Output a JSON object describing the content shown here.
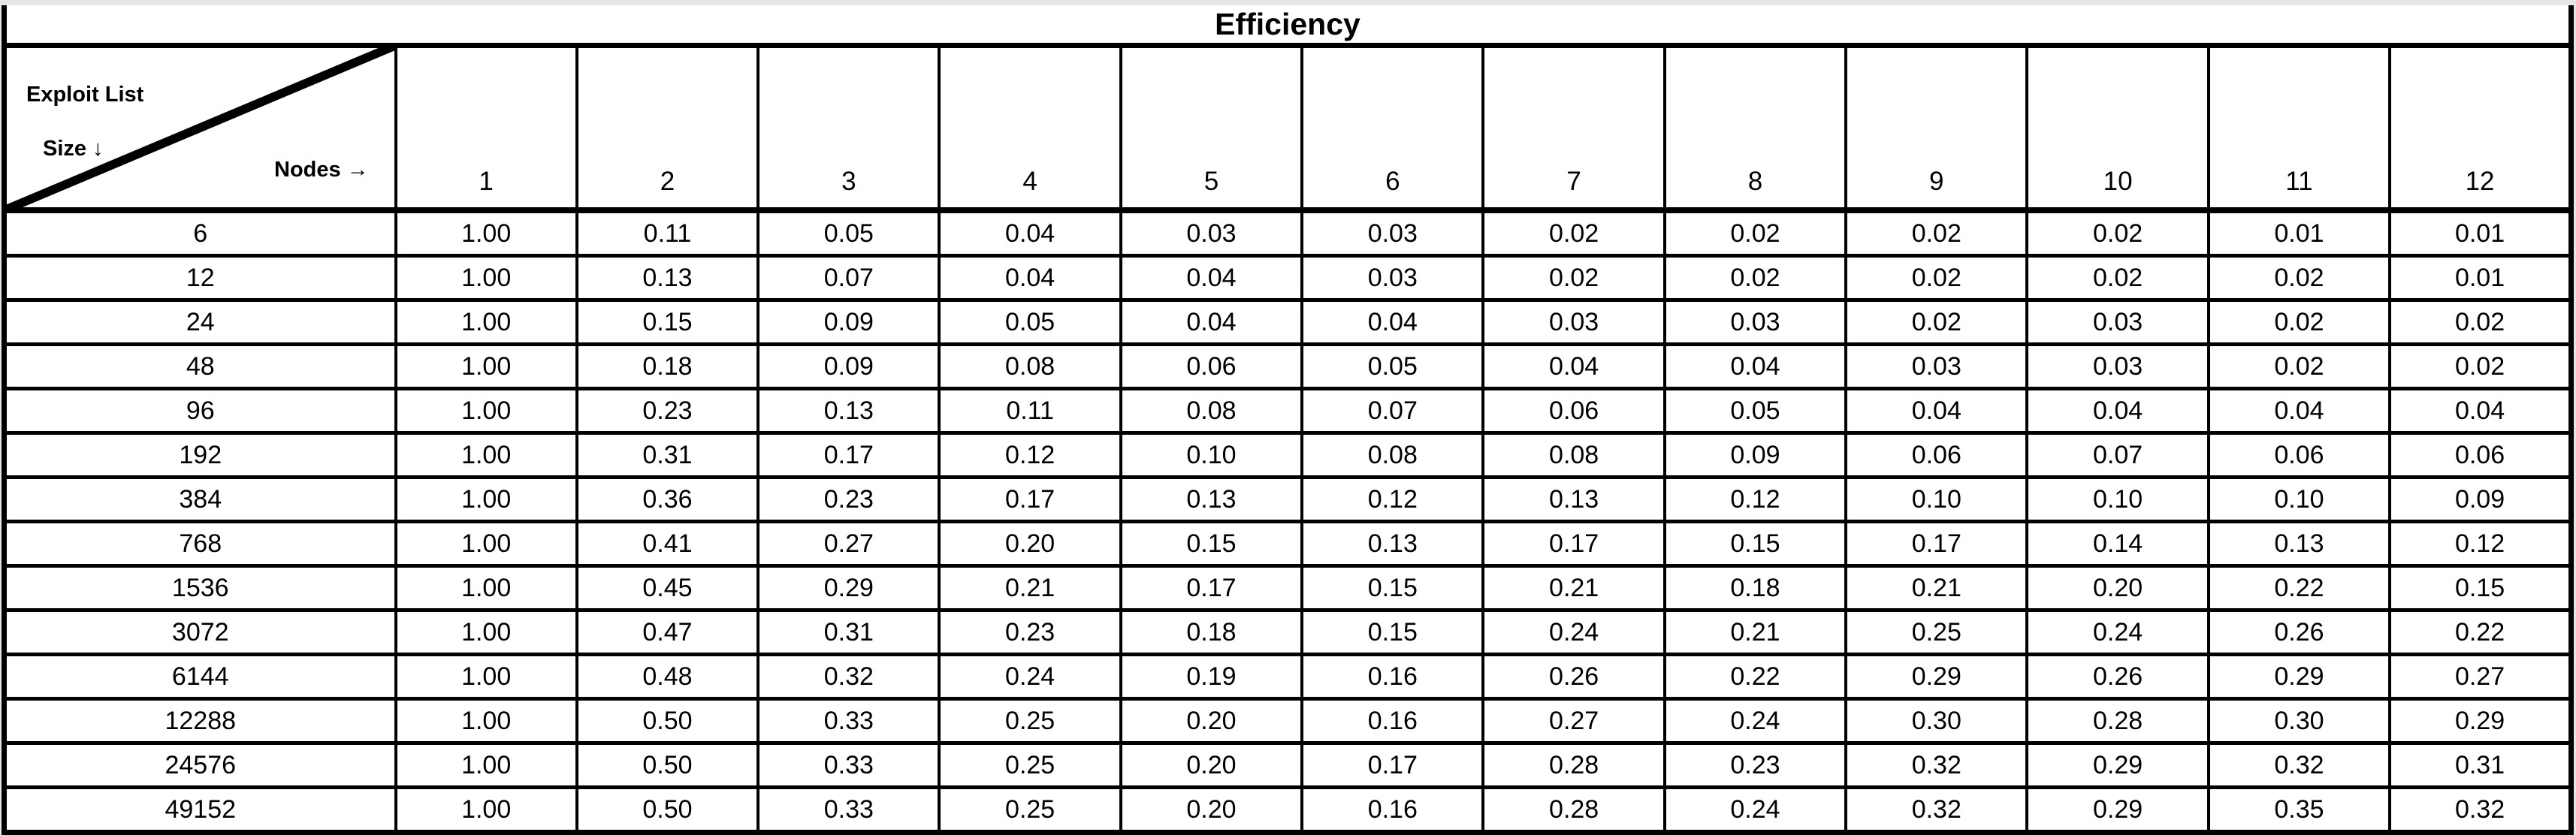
{
  "title": "Efficiency",
  "corner": {
    "line1": "Exploit List",
    "line2": "Size ↓",
    "nodes_label": "Nodes →"
  },
  "colors": {
    "border": "#000000",
    "cell_background": "#ffffff",
    "page_background": "#e6e6e6",
    "text": "#000000"
  },
  "chart_data": {
    "type": "table",
    "title": "Efficiency",
    "row_axis_label": "Exploit List Size ↓",
    "col_axis_label": "Nodes →",
    "columns": [
      "1",
      "2",
      "3",
      "4",
      "5",
      "6",
      "7",
      "8",
      "9",
      "10",
      "11",
      "12"
    ],
    "rows": [
      "6",
      "12",
      "24",
      "48",
      "96",
      "192",
      "384",
      "768",
      "1536",
      "3072",
      "6144",
      "12288",
      "24576",
      "49152"
    ],
    "values": [
      [
        "1.00",
        "0.11",
        "0.05",
        "0.04",
        "0.03",
        "0.03",
        "0.02",
        "0.02",
        "0.02",
        "0.02",
        "0.01",
        "0.01"
      ],
      [
        "1.00",
        "0.13",
        "0.07",
        "0.04",
        "0.04",
        "0.03",
        "0.02",
        "0.02",
        "0.02",
        "0.02",
        "0.02",
        "0.01"
      ],
      [
        "1.00",
        "0.15",
        "0.09",
        "0.05",
        "0.04",
        "0.04",
        "0.03",
        "0.03",
        "0.02",
        "0.03",
        "0.02",
        "0.02"
      ],
      [
        "1.00",
        "0.18",
        "0.09",
        "0.08",
        "0.06",
        "0.05",
        "0.04",
        "0.04",
        "0.03",
        "0.03",
        "0.02",
        "0.02"
      ],
      [
        "1.00",
        "0.23",
        "0.13",
        "0.11",
        "0.08",
        "0.07",
        "0.06",
        "0.05",
        "0.04",
        "0.04",
        "0.04",
        "0.04"
      ],
      [
        "1.00",
        "0.31",
        "0.17",
        "0.12",
        "0.10",
        "0.08",
        "0.08",
        "0.09",
        "0.06",
        "0.07",
        "0.06",
        "0.06"
      ],
      [
        "1.00",
        "0.36",
        "0.23",
        "0.17",
        "0.13",
        "0.12",
        "0.13",
        "0.12",
        "0.10",
        "0.10",
        "0.10",
        "0.09"
      ],
      [
        "1.00",
        "0.41",
        "0.27",
        "0.20",
        "0.15",
        "0.13",
        "0.17",
        "0.15",
        "0.17",
        "0.14",
        "0.13",
        "0.12"
      ],
      [
        "1.00",
        "0.45",
        "0.29",
        "0.21",
        "0.17",
        "0.15",
        "0.21",
        "0.18",
        "0.21",
        "0.20",
        "0.22",
        "0.15"
      ],
      [
        "1.00",
        "0.47",
        "0.31",
        "0.23",
        "0.18",
        "0.15",
        "0.24",
        "0.21",
        "0.25",
        "0.24",
        "0.26",
        "0.22"
      ],
      [
        "1.00",
        "0.48",
        "0.32",
        "0.24",
        "0.19",
        "0.16",
        "0.26",
        "0.22",
        "0.29",
        "0.26",
        "0.29",
        "0.27"
      ],
      [
        "1.00",
        "0.50",
        "0.33",
        "0.25",
        "0.20",
        "0.16",
        "0.27",
        "0.24",
        "0.30",
        "0.28",
        "0.30",
        "0.29"
      ],
      [
        "1.00",
        "0.50",
        "0.33",
        "0.25",
        "0.20",
        "0.17",
        "0.28",
        "0.23",
        "0.32",
        "0.29",
        "0.32",
        "0.31"
      ],
      [
        "1.00",
        "0.50",
        "0.33",
        "0.25",
        "0.20",
        "0.16",
        "0.28",
        "0.24",
        "0.32",
        "0.29",
        "0.35",
        "0.32"
      ]
    ]
  }
}
